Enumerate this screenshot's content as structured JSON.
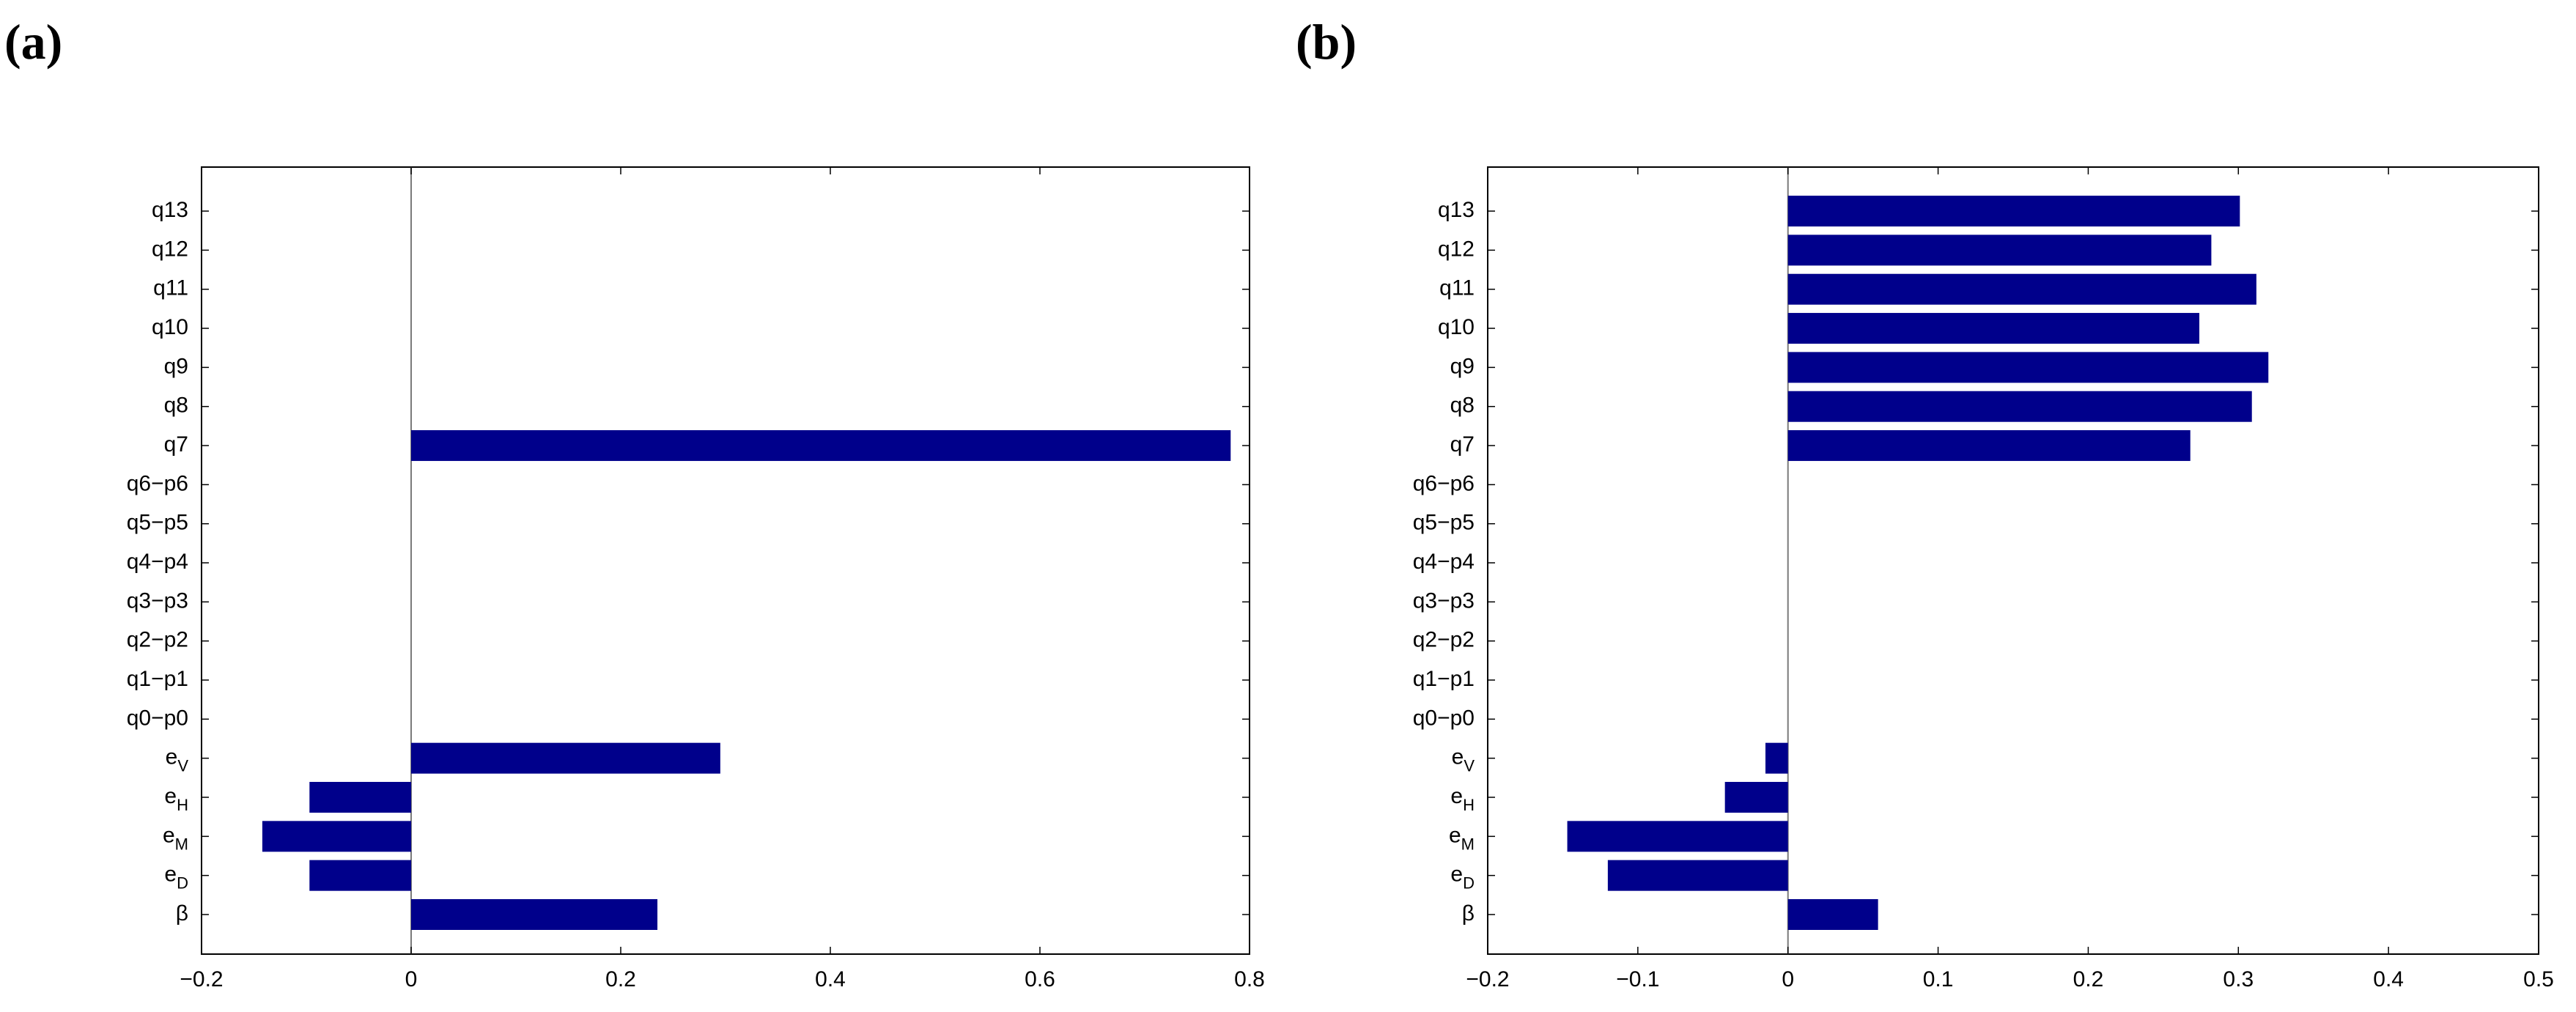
{
  "panel_labels": [
    "(a)",
    "(b)"
  ],
  "colors": {
    "bar": "#00008B",
    "frame": "#000000",
    "zero_line": "#7a7a7a"
  },
  "chart_data": [
    {
      "type": "bar",
      "orientation": "horizontal",
      "panel": "(a)",
      "categories": [
        "β",
        "e_D",
        "e_M",
        "e_H",
        "e_V",
        "q0−p0",
        "q1−p1",
        "q2−p2",
        "q3−p3",
        "q4−p4",
        "q5−p5",
        "q6−p6",
        "q7",
        "q8",
        "q9",
        "q10",
        "q11",
        "q12",
        "q13"
      ],
      "values": [
        0.235,
        -0.097,
        -0.142,
        -0.097,
        0.295,
        0,
        0,
        0,
        0,
        0,
        0,
        0,
        0.782,
        0,
        0,
        0,
        0,
        0,
        0
      ],
      "xlim": [
        -0.2,
        0.8
      ],
      "xticks": [
        -0.2,
        0,
        0.2,
        0.4,
        0.6,
        0.8
      ],
      "xtick_labels": [
        "−0.2",
        "0",
        "0.2",
        "0.4",
        "0.6",
        "0.8"
      ],
      "title": "",
      "xlabel": "",
      "ylabel": ""
    },
    {
      "type": "bar",
      "orientation": "horizontal",
      "panel": "(b)",
      "categories": [
        "β",
        "e_D",
        "e_M",
        "e_H",
        "e_V",
        "q0−p0",
        "q1−p1",
        "q2−p2",
        "q3−p3",
        "q4−p4",
        "q5−p5",
        "q6−p6",
        "q7",
        "q8",
        "q9",
        "q10",
        "q11",
        "q12",
        "q13"
      ],
      "values": [
        0.06,
        -0.12,
        -0.147,
        -0.042,
        -0.015,
        0,
        0,
        0,
        0,
        0,
        0,
        0,
        0.268,
        0.309,
        0.32,
        0.274,
        0.312,
        0.282,
        0.301
      ],
      "xlim": [
        -0.2,
        0.5
      ],
      "xticks": [
        -0.2,
        -0.1,
        0,
        0.1,
        0.2,
        0.3,
        0.4,
        0.5
      ],
      "xtick_labels": [
        "−0.2",
        "−0.1",
        "0",
        "0.1",
        "0.2",
        "0.3",
        "0.4",
        "0.5"
      ],
      "title": "",
      "xlabel": "",
      "ylabel": ""
    }
  ]
}
